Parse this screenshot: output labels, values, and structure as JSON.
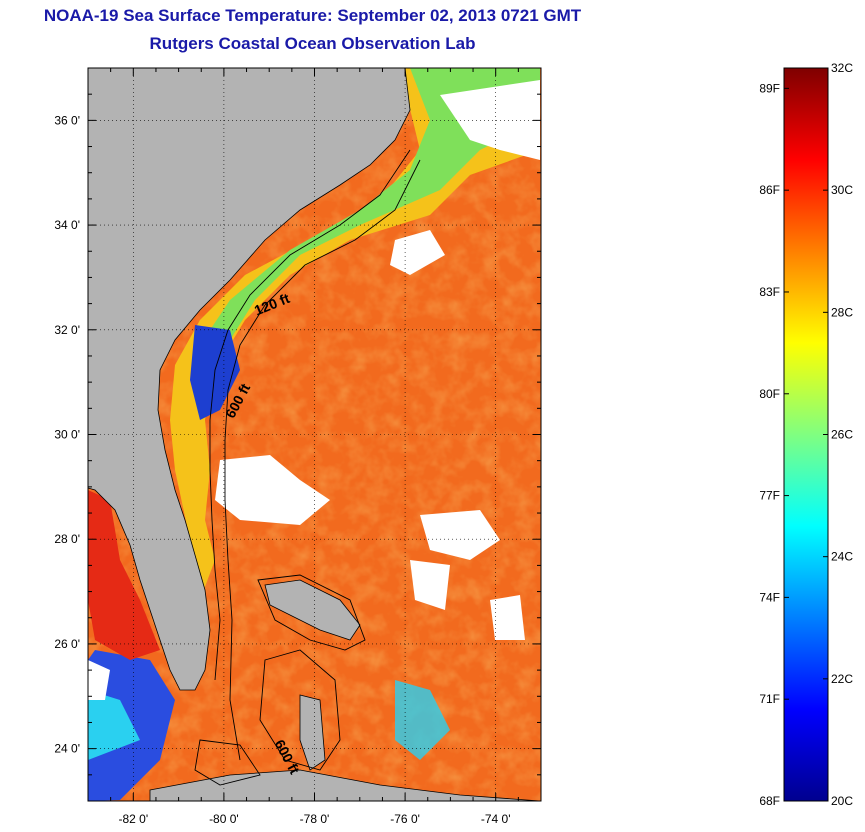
{
  "header": {
    "title": "NOAA-19 Sea Surface Temperature:  September 02, 2013 0721 GMT",
    "subtitle": "Rutgers Coastal Ocean Observation Lab"
  },
  "map": {
    "lon_range": [
      -83,
      -73
    ],
    "lat_range": [
      23,
      37
    ],
    "lat_ticks": [
      {
        "value": 24,
        "label": "24 0'"
      },
      {
        "value": 26,
        "label": "26 0'"
      },
      {
        "value": 28,
        "label": "28 0'"
      },
      {
        "value": 30,
        "label": "30 0'"
      },
      {
        "value": 32,
        "label": "32 0'"
      },
      {
        "value": 34,
        "label": "34 0'"
      },
      {
        "value": 36,
        "label": "36 0'"
      }
    ],
    "lon_ticks": [
      {
        "value": -82,
        "label": "-82 0'"
      },
      {
        "value": -80,
        "label": "-80 0'"
      },
      {
        "value": -78,
        "label": "-78 0'"
      },
      {
        "value": -76,
        "label": "-76 0'"
      },
      {
        "value": -74,
        "label": "-74 0'"
      }
    ],
    "contour_labels": [
      {
        "text": "120 ft",
        "lon": -78.9,
        "lat": 32.4,
        "angle": -22
      },
      {
        "text": "600 ft",
        "lon": -79.6,
        "lat": 30.6,
        "angle": -62
      },
      {
        "text": "600 ft",
        "lon": -78.7,
        "lat": 23.8,
        "angle": 62
      }
    ],
    "colors": {
      "land": "#b3b3b3",
      "cloud": "#ffffff",
      "ocean_warm": "#f26a1e",
      "coastline": "#000000"
    }
  },
  "colorbar": {
    "min_c": 20,
    "max_c": 32,
    "celsius_ticks": [
      {
        "value": 32,
        "label": "32C"
      },
      {
        "value": 30,
        "label": "30C"
      },
      {
        "value": 28,
        "label": "28C"
      },
      {
        "value": 26,
        "label": "26C"
      },
      {
        "value": 24,
        "label": "24C"
      },
      {
        "value": 22,
        "label": "22C"
      },
      {
        "value": 20,
        "label": "20C"
      }
    ],
    "fahrenheit_ticks": [
      {
        "value": 89,
        "label": "89F"
      },
      {
        "value": 86,
        "label": "86F"
      },
      {
        "value": 83,
        "label": "83F"
      },
      {
        "value": 80,
        "label": "80F"
      },
      {
        "value": 77,
        "label": "77F"
      },
      {
        "value": 74,
        "label": "74F"
      },
      {
        "value": 71,
        "label": "71F"
      },
      {
        "value": 68,
        "label": "68F"
      }
    ],
    "stops": [
      "#7f0000",
      "#ff0000",
      "#ff8000",
      "#ffff00",
      "#80ff80",
      "#00ffff",
      "#0080ff",
      "#0000ff",
      "#00008f"
    ]
  }
}
